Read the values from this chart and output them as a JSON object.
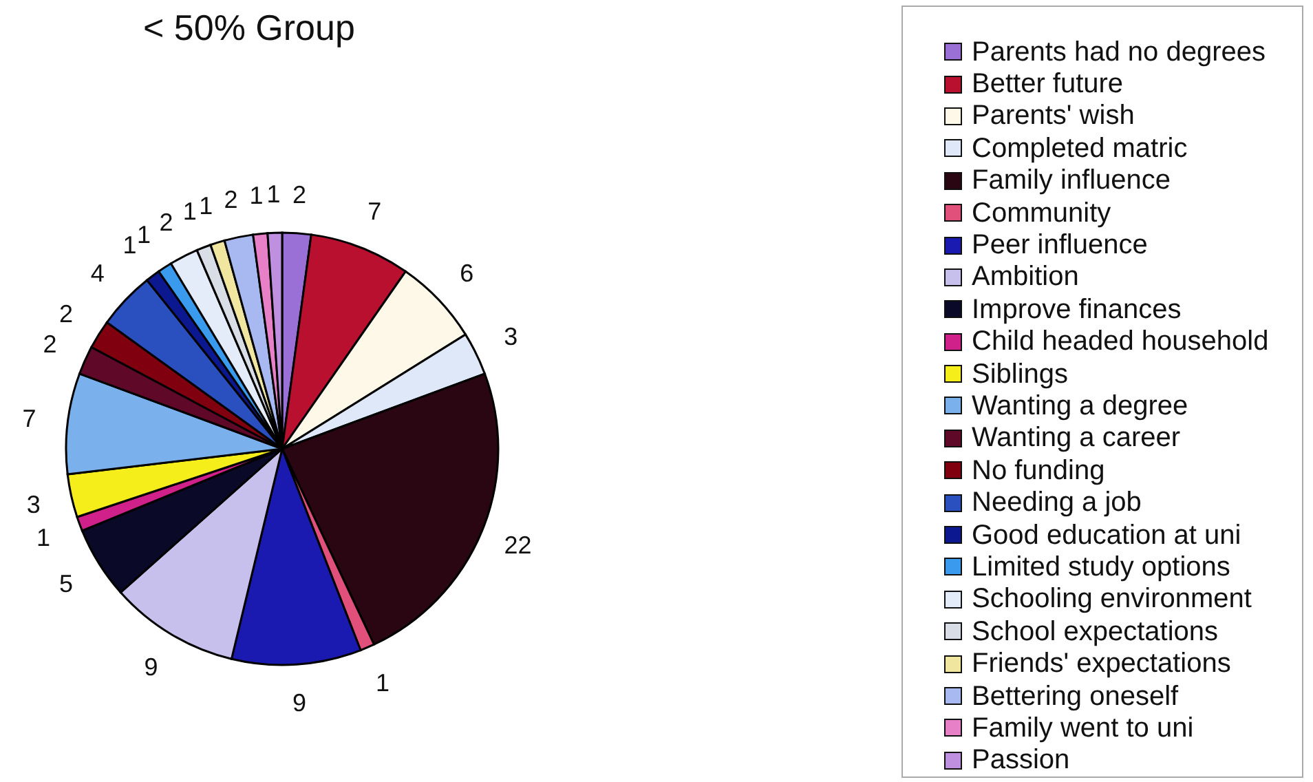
{
  "chart_data": {
    "type": "pie",
    "title": "< 50% Group",
    "categories": [
      "Parents had no degrees",
      "Better future",
      "Parents' wish",
      "Completed matric",
      "Family influence",
      "Community",
      "Peer influence",
      "Ambition",
      "Improve finances",
      "Child headed household",
      "Siblings",
      "Wanting a degree",
      "Wanting a career",
      "No funding",
      "Needing a job",
      "Good education at uni",
      "Limited study options",
      "Schooling environment",
      "School expectations",
      "Friends' expectations",
      "Bettering oneself",
      "Family went to uni",
      "Passion"
    ],
    "values": [
      2,
      7,
      6,
      3,
      22,
      1,
      9,
      9,
      5,
      1,
      3,
      7,
      2,
      2,
      4,
      1,
      1,
      2,
      1,
      1,
      2,
      1,
      1
    ],
    "colors": [
      "#9a6fd6",
      "#b8102e",
      "#fdf8e8",
      "#dfe8f8",
      "#2a0512",
      "#e0507a",
      "#1a1ab0",
      "#c8c0ec",
      "#0a0a28",
      "#d0208a",
      "#f6ee1a",
      "#7ab0ec",
      "#600828",
      "#800010",
      "#2a50c0",
      "#0c1890",
      "#3a9aee",
      "#e4ecfa",
      "#d8dde6",
      "#f0e6a0",
      "#a8b8f0",
      "#e880c8",
      "#c090e0"
    ],
    "data_labels": true,
    "legend": "right"
  }
}
